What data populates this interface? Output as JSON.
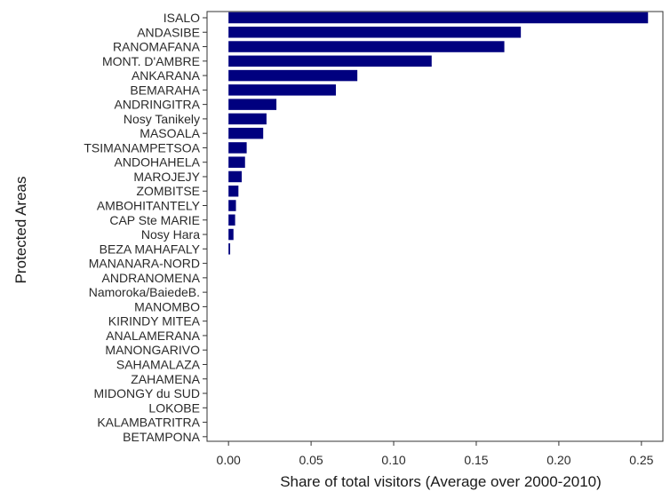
{
  "chart_data": {
    "type": "bar",
    "orientation": "horizontal",
    "title": "",
    "xlabel": "Share of total visitors (Average over 2000-2010)",
    "ylabel": "Protected Areas",
    "xlim": [
      -0.013,
      0.263
    ],
    "x_ticks": [
      0.0,
      0.05,
      0.1,
      0.15,
      0.2,
      0.25
    ],
    "x_tick_labels": [
      "0.00",
      "0.05",
      "0.10",
      "0.15",
      "0.20",
      "0.25"
    ],
    "grid": false,
    "bar_color": "#00007f",
    "categories": [
      "ISALO",
      "ANDASIBE",
      "RANOMAFANA",
      "MONT. D'AMBRE",
      "ANKARANA",
      "BEMARAHA",
      "ANDRINGITRA",
      "Nosy Tanikely",
      "MASOALA",
      "TSIMANAMPETSOA",
      "ANDOHAHELA",
      "MAROJEJY",
      "ZOMBITSE",
      "AMBOHITANTELY",
      "CAP Ste MARIE",
      "Nosy Hara",
      "BEZA MAHAFALY",
      "MANANARA-NORD",
      "ANDRANOMENA",
      "Namoroka/BaiedeB.",
      "MANOMBO",
      "KIRINDY MITEA",
      "ANALAMERANA",
      "MANONGARIVO",
      "SAHAMALAZA",
      "ZAHAMENA",
      "MIDONGY du SUD",
      "LOKOBE",
      "KALAMBATRITRA",
      "BETAMPONA"
    ],
    "values": [
      0.254,
      0.177,
      0.167,
      0.123,
      0.078,
      0.065,
      0.029,
      0.023,
      0.021,
      0.011,
      0.01,
      0.008,
      0.006,
      0.0045,
      0.004,
      0.003,
      0.001,
      0.0,
      0.0,
      0.0,
      0.0,
      0.0,
      0.0,
      0.0,
      0.0,
      0.0,
      0.0,
      0.0,
      0.0,
      0.0
    ]
  }
}
